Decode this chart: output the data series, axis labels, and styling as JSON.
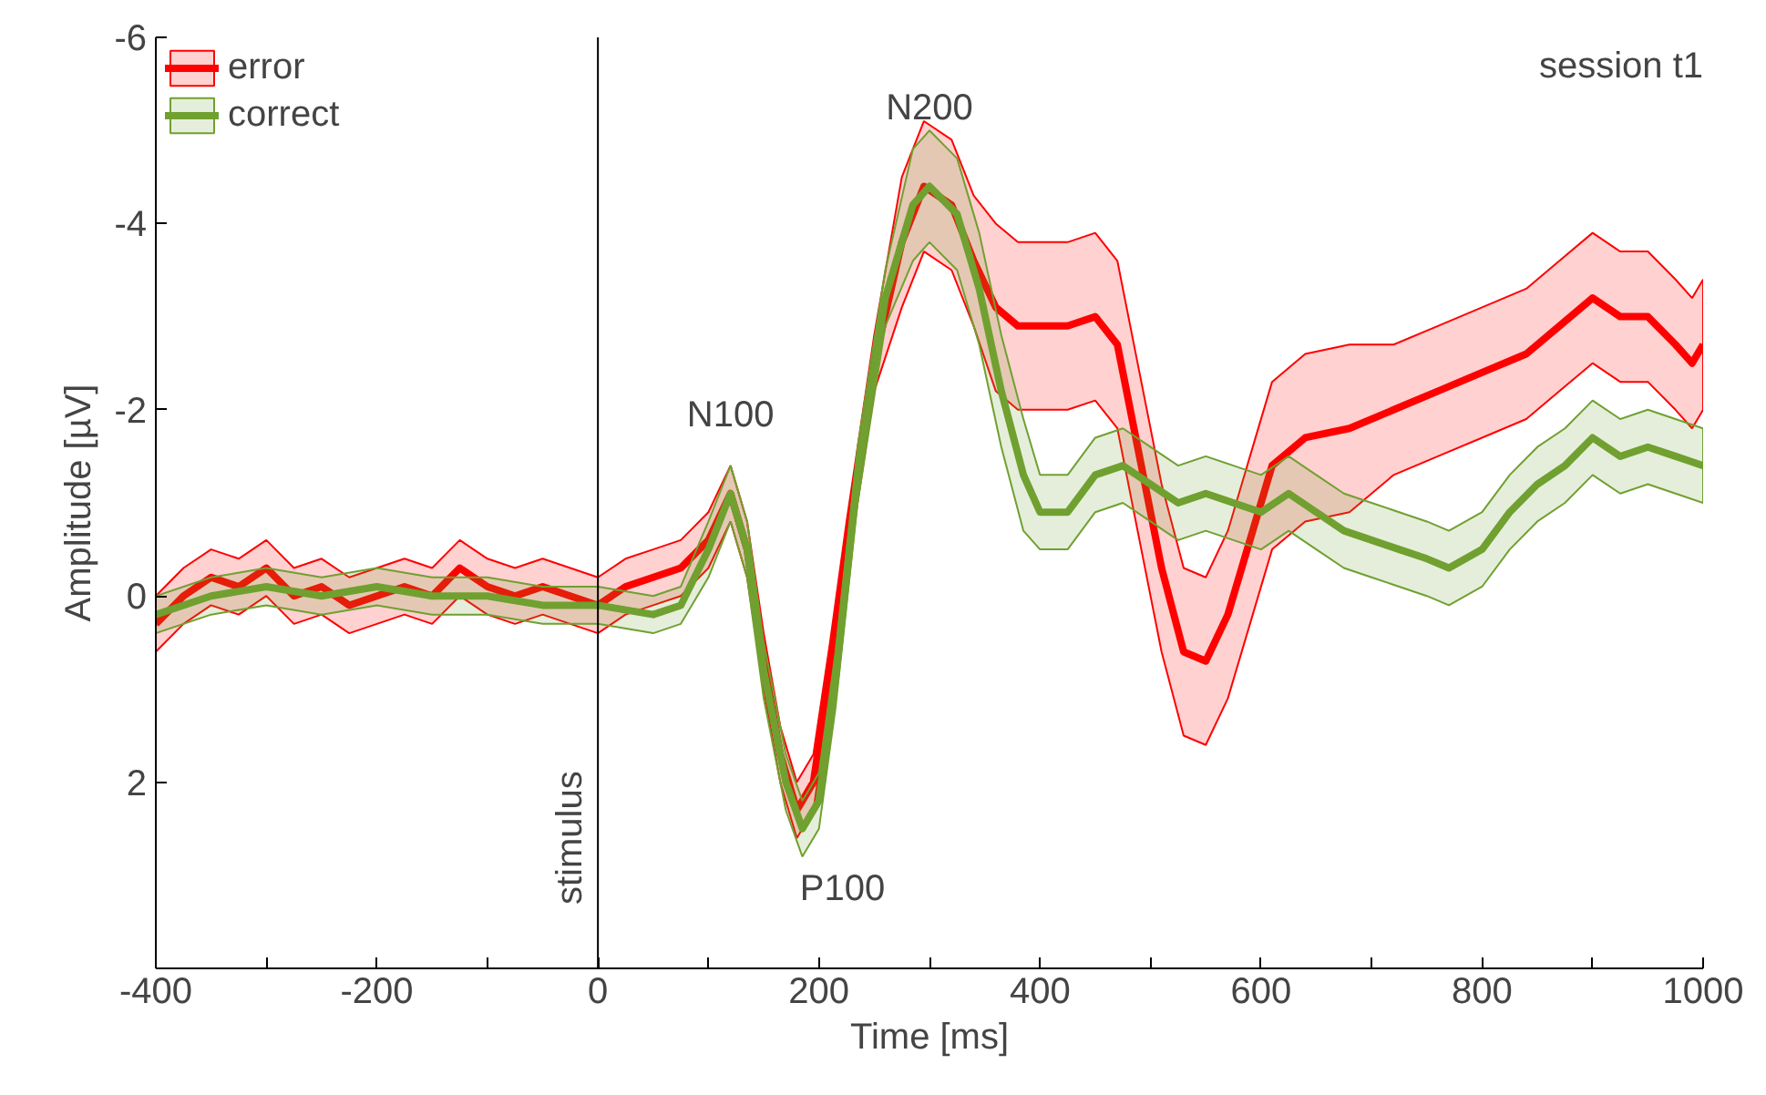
{
  "chart_data": {
    "type": "line",
    "xlabel": "Time [ms]",
    "ylabel": "Amplitude [µV]",
    "xlim": [
      -400,
      1000
    ],
    "ylim": [
      4,
      -6
    ],
    "xticks": [
      -400,
      {
        "value": -300,
        "label": null
      },
      -200,
      {
        "value": -100,
        "label": null
      },
      0,
      {
        "value": 100,
        "label": null
      },
      200,
      {
        "value": 300,
        "label": null
      },
      400,
      {
        "value": 500,
        "label": null
      },
      600,
      {
        "value": 700,
        "label": null
      },
      800,
      {
        "value": 900,
        "label": null
      },
      1000
    ],
    "yticks": [
      -6,
      -4,
      -2,
      0,
      2
    ],
    "grid": false,
    "legend": "top left",
    "marker": "none",
    "line_style": "solid",
    "series": [
      {
        "name": "error",
        "color": "#ff0000",
        "x": [
          -400,
          -375,
          -350,
          -325,
          -300,
          -275,
          -250,
          -225,
          -200,
          -175,
          -150,
          -125,
          -100,
          -75,
          -50,
          -25,
          0,
          25,
          50,
          75,
          100,
          120,
          135,
          150,
          165,
          180,
          195,
          210,
          225,
          250,
          275,
          295,
          320,
          340,
          360,
          380,
          400,
          425,
          450,
          470,
          490,
          510,
          530,
          550,
          570,
          590,
          610,
          640,
          680,
          720,
          760,
          800,
          840,
          870,
          900,
          925,
          950,
          975,
          990,
          1000
        ],
        "values": [
          0.3,
          0.0,
          -0.2,
          -0.1,
          -0.3,
          0.0,
          -0.1,
          0.1,
          0.0,
          -0.1,
          0.0,
          -0.3,
          -0.1,
          0.0,
          -0.1,
          0.0,
          0.1,
          -0.1,
          -0.2,
          -0.3,
          -0.6,
          -1.1,
          -0.5,
          0.7,
          1.7,
          2.3,
          2.0,
          0.8,
          -0.5,
          -2.5,
          -3.8,
          -4.4,
          -4.2,
          -3.6,
          -3.1,
          -2.9,
          -2.9,
          -2.9,
          -3.0,
          -2.7,
          -1.5,
          -0.3,
          0.6,
          0.7,
          0.2,
          -0.6,
          -1.4,
          -1.7,
          -1.8,
          -2.0,
          -2.2,
          -2.4,
          -2.6,
          -2.9,
          -3.2,
          -3.0,
          -3.0,
          -2.7,
          -2.5,
          -2.7
        ],
        "lower": [
          0.0,
          -0.3,
          -0.5,
          -0.4,
          -0.6,
          -0.3,
          -0.4,
          -0.2,
          -0.3,
          -0.4,
          -0.3,
          -0.6,
          -0.4,
          -0.3,
          -0.4,
          -0.3,
          -0.2,
          -0.4,
          -0.5,
          -0.6,
          -0.9,
          -1.4,
          -0.8,
          0.4,
          1.4,
          2.0,
          1.7,
          0.5,
          -0.8,
          -2.8,
          -4.5,
          -5.1,
          -4.9,
          -4.3,
          -4.0,
          -3.8,
          -3.8,
          -3.8,
          -3.9,
          -3.6,
          -2.4,
          -1.2,
          -0.3,
          -0.2,
          -0.7,
          -1.5,
          -2.3,
          -2.6,
          -2.7,
          -2.7,
          -2.9,
          -3.1,
          -3.3,
          -3.6,
          -3.9,
          -3.7,
          -3.7,
          -3.4,
          -3.2,
          -3.4
        ],
        "upper": [
          0.6,
          0.3,
          0.1,
          0.2,
          0.0,
          0.3,
          0.2,
          0.4,
          0.3,
          0.2,
          0.3,
          0.0,
          0.2,
          0.3,
          0.2,
          0.3,
          0.4,
          0.2,
          0.1,
          0.0,
          -0.3,
          -0.8,
          -0.2,
          1.0,
          2.0,
          2.6,
          2.3,
          1.1,
          -0.2,
          -2.2,
          -3.1,
          -3.7,
          -3.5,
          -2.9,
          -2.2,
          -2.0,
          -2.0,
          -2.0,
          -2.1,
          -1.8,
          -0.6,
          0.6,
          1.5,
          1.6,
          1.1,
          0.3,
          -0.5,
          -0.8,
          -0.9,
          -1.3,
          -1.5,
          -1.7,
          -1.9,
          -2.2,
          -2.5,
          -2.3,
          -2.3,
          -2.0,
          -1.8,
          -2.0
        ]
      },
      {
        "name": "correct",
        "color": "#70a030",
        "x": [
          -400,
          -350,
          -300,
          -250,
          -200,
          -150,
          -100,
          -50,
          0,
          50,
          75,
          100,
          120,
          135,
          150,
          170,
          185,
          200,
          215,
          235,
          260,
          285,
          300,
          325,
          345,
          365,
          385,
          400,
          425,
          450,
          475,
          500,
          525,
          550,
          575,
          600,
          625,
          650,
          675,
          700,
          725,
          750,
          770,
          800,
          825,
          850,
          875,
          900,
          925,
          950,
          975,
          1000
        ],
        "values": [
          0.2,
          0.0,
          -0.1,
          0.0,
          -0.1,
          0.0,
          0.0,
          0.1,
          0.1,
          0.2,
          0.1,
          -0.5,
          -1.1,
          -0.5,
          0.8,
          2.0,
          2.5,
          2.2,
          0.9,
          -1.3,
          -3.2,
          -4.2,
          -4.4,
          -4.1,
          -3.3,
          -2.2,
          -1.3,
          -0.9,
          -0.9,
          -1.3,
          -1.4,
          -1.2,
          -1.0,
          -1.1,
          -1.0,
          -0.9,
          -1.1,
          -0.9,
          -0.7,
          -0.6,
          -0.5,
          -0.4,
          -0.3,
          -0.5,
          -0.9,
          -1.2,
          -1.4,
          -1.7,
          -1.5,
          -1.6,
          -1.5,
          -1.4
        ],
        "lower": [
          0.0,
          -0.2,
          -0.3,
          -0.2,
          -0.3,
          -0.2,
          -0.2,
          -0.1,
          -0.1,
          0.0,
          -0.1,
          -0.8,
          -1.4,
          -0.8,
          0.5,
          1.7,
          2.2,
          1.9,
          0.6,
          -1.6,
          -3.5,
          -4.8,
          -5.0,
          -4.7,
          -3.9,
          -2.8,
          -1.9,
          -1.3,
          -1.3,
          -1.7,
          -1.8,
          -1.6,
          -1.4,
          -1.5,
          -1.4,
          -1.3,
          -1.5,
          -1.3,
          -1.1,
          -1.0,
          -0.9,
          -0.8,
          -0.7,
          -0.9,
          -1.3,
          -1.6,
          -1.8,
          -2.1,
          -1.9,
          -2.0,
          -1.9,
          -1.8
        ],
        "upper": [
          0.4,
          0.2,
          0.1,
          0.2,
          0.1,
          0.2,
          0.2,
          0.3,
          0.3,
          0.4,
          0.3,
          -0.2,
          -0.8,
          -0.2,
          1.1,
          2.3,
          2.8,
          2.5,
          1.2,
          -1.0,
          -2.9,
          -3.6,
          -3.8,
          -3.5,
          -2.7,
          -1.6,
          -0.7,
          -0.5,
          -0.5,
          -0.9,
          -1.0,
          -0.8,
          -0.6,
          -0.7,
          -0.6,
          -0.5,
          -0.7,
          -0.5,
          -0.3,
          -0.2,
          -0.1,
          0.0,
          0.1,
          -0.1,
          -0.5,
          -0.8,
          -1.0,
          -1.3,
          -1.1,
          -1.2,
          -1.1,
          -1.0
        ]
      }
    ],
    "ref_lines": [
      {
        "axis": "x",
        "value": 0,
        "label": "stimulus",
        "color": "#000000"
      }
    ],
    "annotations": [
      {
        "text": "N100",
        "x": 120,
        "y": -1.1
      },
      {
        "text": "N200",
        "x": 300,
        "y": -4.4
      },
      {
        "text": "P100",
        "x": 185,
        "y": 2.5
      },
      "session t1"
    ]
  }
}
